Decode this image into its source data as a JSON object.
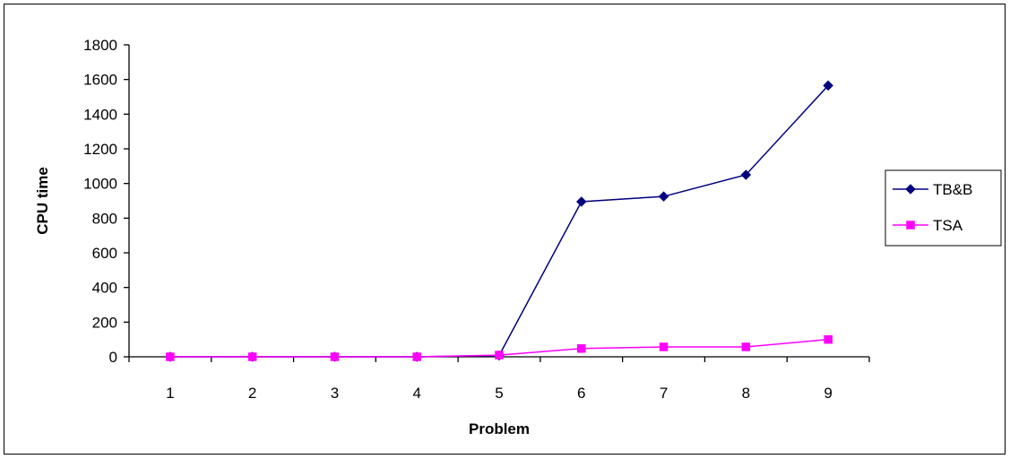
{
  "chart_data": {
    "type": "line",
    "xlabel": "Problem",
    "ylabel": "CPU time",
    "categories": [
      "1",
      "2",
      "3",
      "4",
      "5",
      "6",
      "7",
      "8",
      "9"
    ],
    "ylim": [
      0,
      1800
    ],
    "yticks": [
      0,
      200,
      400,
      600,
      800,
      1000,
      1200,
      1400,
      1600,
      1800
    ],
    "grid": false,
    "legend_position": "right",
    "series": [
      {
        "name": "TB&B",
        "color": "#000080",
        "marker": "diamond",
        "values": [
          0,
          0,
          0,
          0,
          8,
          895,
          925,
          1050,
          1565
        ]
      },
      {
        "name": "TSA",
        "color": "#FF00FF",
        "marker": "square",
        "values": [
          0,
          0,
          0,
          0,
          10,
          48,
          57,
          57,
          100
        ]
      }
    ]
  }
}
